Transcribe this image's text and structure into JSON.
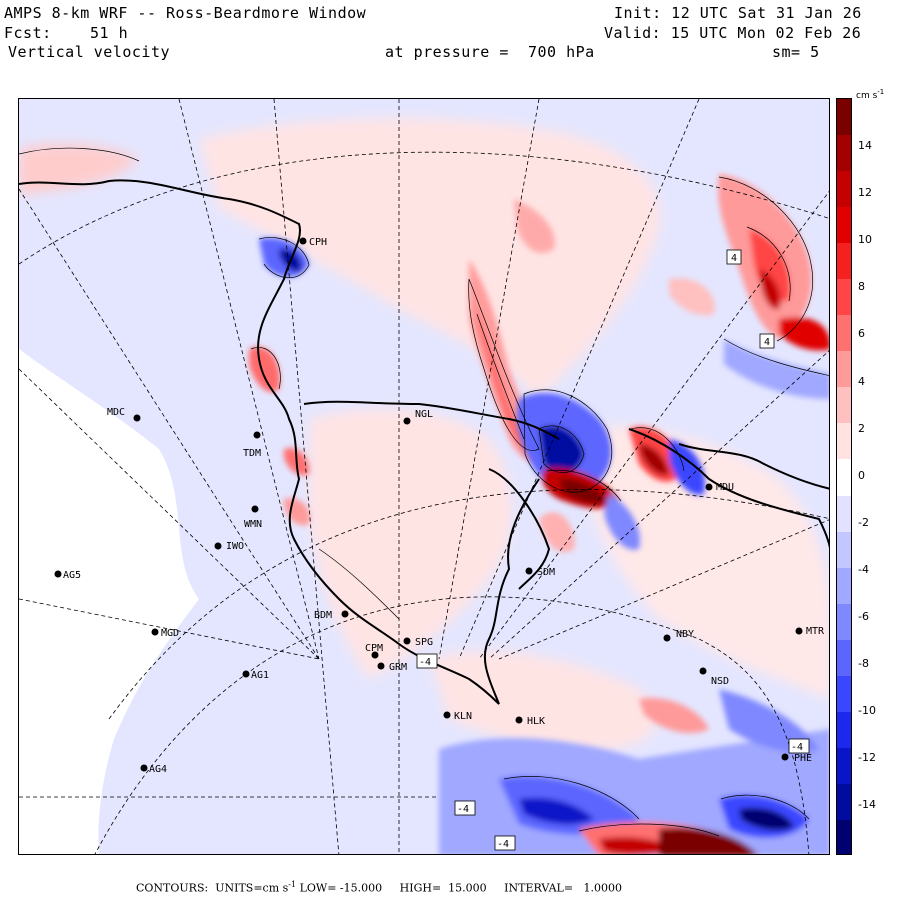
{
  "header": {
    "model_title": "AMPS 8-km WRF -- Ross-Beardmore Window",
    "init": "Init: 12 UTC Sat 31 Jan 26",
    "fcst_label": "Fcst:",
    "fcst_value": "51 h",
    "valid": "Valid: 15 UTC Mon 02 Feb 26",
    "field": "Vertical velocity",
    "pressure": "at pressure =  700 hPa",
    "smoothing": "sm= 5"
  },
  "colorbar": {
    "units": "cm s",
    "units_exp": "-1",
    "labels": [
      "14",
      "12",
      "10",
      "8",
      "6",
      "4",
      "2",
      "0",
      "-2",
      "-4",
      "-6",
      "-8",
      "-10",
      "-12",
      "-14"
    ],
    "colors": [
      "#7a0000",
      "#a30000",
      "#c40000",
      "#e00000",
      "#f52020",
      "#ff4545",
      "#ff7070",
      "#ff9a9a",
      "#ffc0c0",
      "#ffe2e2",
      "#ffffff",
      "#e2e2ff",
      "#c2c8ff",
      "#a0a8ff",
      "#7f88ff",
      "#5c66ff",
      "#3a46ff",
      "#1c28ee",
      "#0a14c8",
      "#000ca0",
      "#000070"
    ]
  },
  "stations": [
    {
      "id": "stn-mdc",
      "label": "MDC"
    },
    {
      "id": "stn-tdm",
      "label": "TDM"
    },
    {
      "id": "stn-wmn",
      "label": "WMN"
    },
    {
      "id": "stn-iwo",
      "label": "IWO"
    },
    {
      "id": "stn-ag5",
      "label": "AG5"
    },
    {
      "id": "stn-mgd",
      "label": "MGD"
    },
    {
      "id": "stn-ag1",
      "label": "AG1"
    },
    {
      "id": "stn-ag4",
      "label": "AG4"
    },
    {
      "id": "stn-bdm",
      "label": "BDM"
    },
    {
      "id": "stn-cpm",
      "label": "CPM"
    },
    {
      "id": "stn-grm",
      "label": "GRM"
    },
    {
      "id": "stn-spg",
      "label": "SPG"
    },
    {
      "id": "stn-kln",
      "label": "KLN"
    },
    {
      "id": "stn-hlk",
      "label": "HLK"
    },
    {
      "id": "stn-sdm",
      "label": "SDM"
    },
    {
      "id": "stn-nby",
      "label": "NBY"
    },
    {
      "id": "stn-nsd",
      "label": "NSD"
    },
    {
      "id": "stn-mdu",
      "label": "MDU"
    },
    {
      "id": "stn-mtr",
      "label": "MTR"
    },
    {
      "id": "stn-phe",
      "label": "PHE"
    },
    {
      "id": "stn-ngl",
      "label": "NGL"
    },
    {
      "id": "stn-cph",
      "label": "CPH"
    }
  ],
  "contour_labels": [
    "4",
    "4",
    "-4",
    "-4",
    "-4",
    "-4"
  ],
  "footer": {
    "contours": "CONTOURS:",
    "units_label": "UNITS=cm s",
    "units_exp": "-1",
    "low": "LOW= -15.000",
    "high": "HIGH=  15.000",
    "interval": "INTERVAL=   1.0000"
  }
}
